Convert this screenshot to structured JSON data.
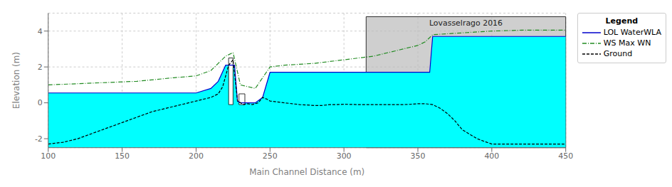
{
  "chart_data": {
    "type": "line",
    "x_label": "Main Channel Distance (m)",
    "y_label": "Elevation (m)",
    "xlim": [
      100,
      450
    ],
    "ylim": [
      -2.5,
      5.0
    ],
    "xticks": [
      100,
      150,
      200,
      250,
      300,
      350,
      400,
      450
    ],
    "yticks": [
      -2,
      0,
      2,
      4
    ],
    "grid": true,
    "legend": "upper right outside",
    "legend_title": "Legend",
    "series": [
      {
        "type": "area",
        "color": "#00FFFF",
        "x": [
          100,
          130,
          160,
          185,
          200,
          210,
          215,
          220,
          222,
          226,
          228,
          230,
          232,
          235,
          240,
          245,
          250,
          255,
          260,
          270,
          280,
          290,
          300,
          310,
          320,
          330,
          340,
          350,
          355,
          358,
          360,
          370,
          380,
          390,
          400,
          420,
          450
        ],
        "values": [
          0.55,
          0.55,
          0.55,
          0.55,
          0.55,
          0.8,
          1.2,
          2.1,
          2.1,
          2.1,
          0.1,
          0.0,
          0.0,
          0.0,
          0.0,
          0.3,
          1.7,
          1.7,
          1.7,
          1.7,
          1.7,
          1.7,
          1.7,
          1.7,
          1.7,
          1.7,
          1.7,
          1.7,
          1.7,
          1.7,
          3.7,
          3.7,
          3.7,
          3.7,
          3.7,
          3.7,
          3.7
        ]
      },
      {
        "name": "LOL WaterWLA",
        "type": "line",
        "color": "#0000CC",
        "line_style": "solid",
        "x": [
          100,
          130,
          160,
          185,
          200,
          210,
          215,
          220,
          222,
          226,
          228,
          230,
          232,
          235,
          240,
          245,
          250,
          255,
          260,
          270,
          280,
          290,
          300,
          310,
          320,
          330,
          340,
          350,
          355,
          358,
          360,
          370,
          380,
          390,
          400,
          420,
          450
        ],
        "values": [
          0.55,
          0.55,
          0.55,
          0.55,
          0.55,
          0.8,
          1.2,
          2.1,
          2.1,
          2.1,
          0.1,
          0.0,
          0.0,
          0.0,
          0.0,
          0.3,
          1.7,
          1.7,
          1.7,
          1.7,
          1.7,
          1.7,
          1.7,
          1.7,
          1.7,
          1.7,
          1.7,
          1.7,
          1.7,
          1.7,
          3.7,
          3.7,
          3.7,
          3.7,
          3.7,
          3.7,
          3.7
        ]
      },
      {
        "name": "WS Max WN",
        "type": "line",
        "color": "#228B22",
        "line_style": "dashdot",
        "x": [
          100,
          130,
          160,
          185,
          200,
          210,
          215,
          220,
          225,
          230,
          240,
          250,
          260,
          270,
          280,
          290,
          300,
          310,
          320,
          330,
          340,
          350,
          355,
          360,
          370,
          380,
          400,
          420,
          450
        ],
        "values": [
          1.0,
          1.1,
          1.2,
          1.4,
          1.5,
          1.8,
          2.2,
          2.6,
          2.8,
          1.0,
          0.8,
          2.0,
          2.1,
          2.15,
          2.2,
          2.3,
          2.4,
          2.5,
          2.6,
          2.8,
          3.0,
          3.2,
          3.4,
          3.8,
          3.85,
          3.9,
          4.0,
          4.05,
          4.05
        ]
      },
      {
        "name": "Ground",
        "type": "line",
        "color": "#000000",
        "line_style": "dashed",
        "x": [
          100,
          110,
          120,
          130,
          140,
          150,
          160,
          170,
          180,
          190,
          200,
          210,
          215,
          218,
          220,
          222,
          225,
          228,
          230,
          232,
          235,
          238,
          240,
          242,
          245,
          248,
          250,
          255,
          260,
          265,
          270,
          275,
          280,
          285,
          290,
          295,
          300,
          310,
          320,
          330,
          340,
          345,
          350,
          355,
          360,
          365,
          370,
          375,
          380,
          390,
          400,
          410,
          420,
          430,
          440,
          450
        ],
        "values": [
          -2.3,
          -2.2,
          -2.0,
          -1.7,
          -1.4,
          -1.1,
          -0.8,
          -0.5,
          -0.3,
          -0.1,
          0.1,
          0.3,
          0.5,
          0.9,
          1.5,
          2.1,
          2.4,
          0.1,
          0.0,
          -0.1,
          -0.05,
          -0.1,
          -0.05,
          -0.0,
          0.3,
          0.2,
          0.1,
          0.05,
          0.0,
          -0.05,
          -0.1,
          -0.12,
          -0.15,
          -0.15,
          -0.1,
          -0.1,
          -0.08,
          -0.1,
          -0.1,
          -0.1,
          -0.1,
          -0.08,
          -0.05,
          -0.05,
          -0.1,
          -0.3,
          -0.6,
          -1.0,
          -1.5,
          -2.0,
          -2.3,
          -2.3,
          -2.3,
          -2.3,
          -2.3,
          -2.3
        ]
      }
    ],
    "regions": [
      {
        "x0": 315,
        "x1": 450,
        "y0": -2.5,
        "y1": 4.8,
        "color": "#BBBBBB",
        "label": "Lovasselrago 2016"
      }
    ],
    "structures": [
      {
        "x0": 222,
        "x1": 225,
        "y0": -0.1,
        "y1": 2.5
      },
      {
        "x0": 229,
        "x1": 233,
        "y0": -0.1,
        "y1": 0.5
      }
    ]
  }
}
